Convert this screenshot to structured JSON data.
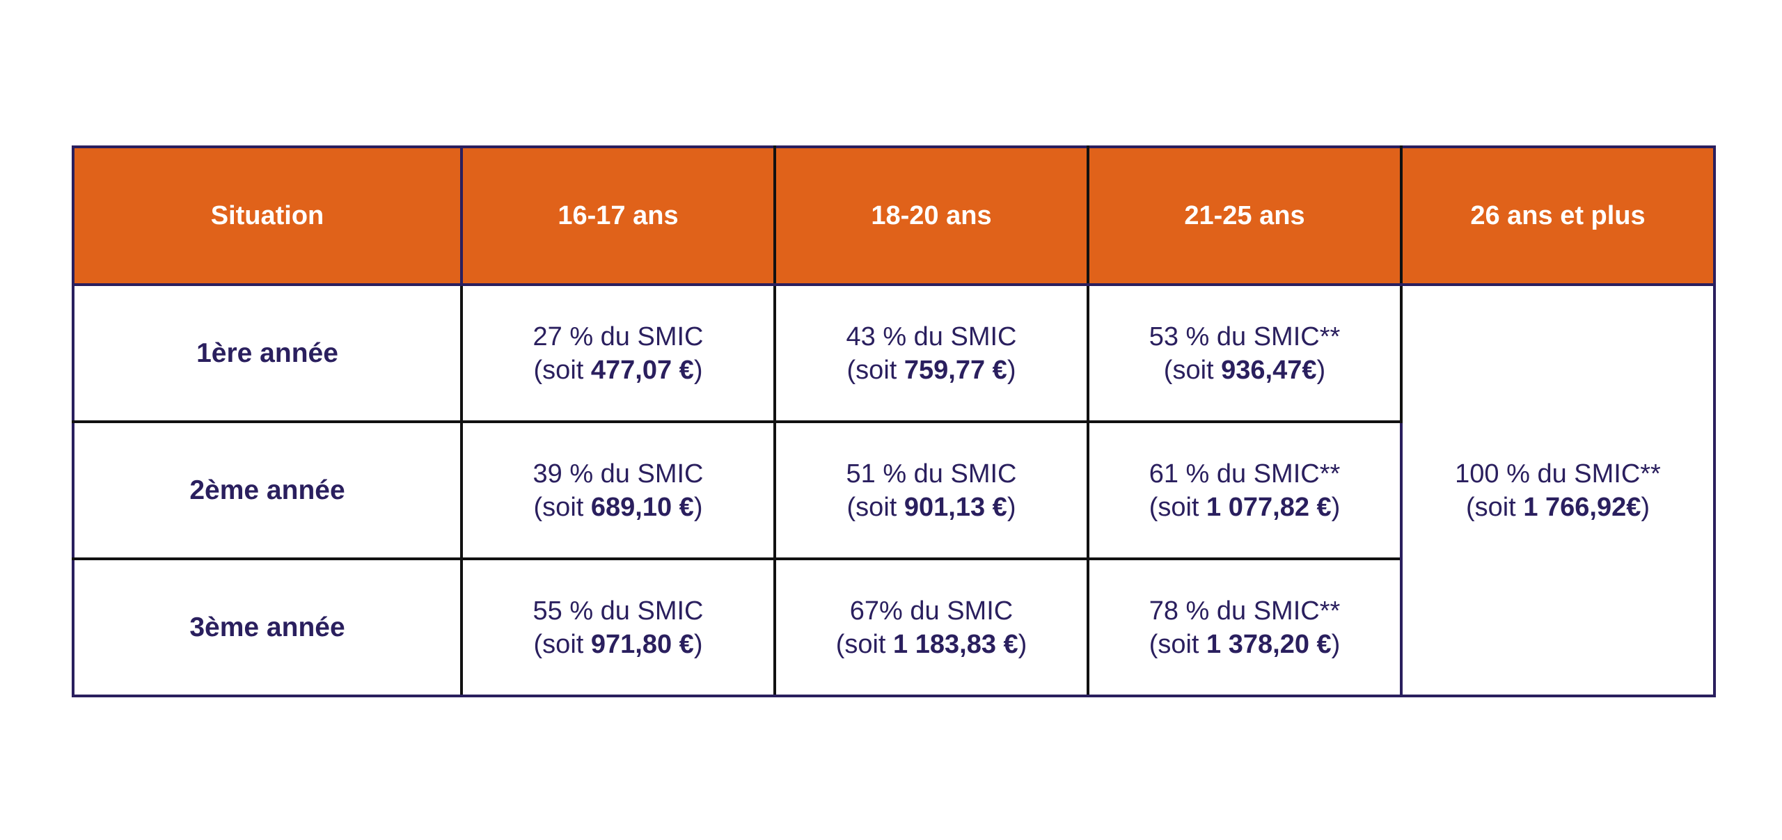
{
  "table": {
    "headers": [
      "Situation",
      "16-17 ans",
      "18-20 ans",
      "21-25 ans",
      "26 ans et plus"
    ],
    "rows": [
      {
        "label": "1ère année",
        "cells": [
          {
            "pct": "27 % du SMIC",
            "open": "(soit ",
            "amount": "477,07 €",
            "close": ")"
          },
          {
            "pct": "43 % du SMIC",
            "open": "(soit ",
            "amount": "759,77 €",
            "close": ")"
          },
          {
            "pct": "53 % du SMIC**",
            "open": "(soit ",
            "amount": "936,47€",
            "close": ")"
          }
        ]
      },
      {
        "label": "2ème année",
        "cells": [
          {
            "pct": "39 % du SMIC",
            "open": "(soit ",
            "amount": "689,10 €",
            "close": ")"
          },
          {
            "pct": "51 % du SMIC",
            "open": "(soit ",
            "amount": "901,13 €",
            "close": ")"
          },
          {
            "pct": "61 % du SMIC**",
            "open": "(soit ",
            "amount": "1 077,82 €",
            "close": ")"
          }
        ]
      },
      {
        "label": "3ème année",
        "cells": [
          {
            "pct": "55 % du SMIC",
            "open": "(soit ",
            "amount": "971,80 €",
            "close": ")"
          },
          {
            "pct": "67% du SMIC",
            "open": "(soit ",
            "amount": "1 183,83 €",
            "close": ")"
          },
          {
            "pct": "78 % du SMIC**",
            "open": "(soit ",
            "amount": "1 378,20 €",
            "close": ")"
          }
        ]
      }
    ],
    "over26": {
      "pct": "100 % du SMIC**",
      "open": "(soit ",
      "amount": "1 766,92€",
      "close": ")"
    }
  },
  "colors": {
    "header_bg": "#e0621a",
    "header_text": "#ffffff",
    "body_text": "#2a1f5e",
    "border": "#2a1f5e"
  }
}
